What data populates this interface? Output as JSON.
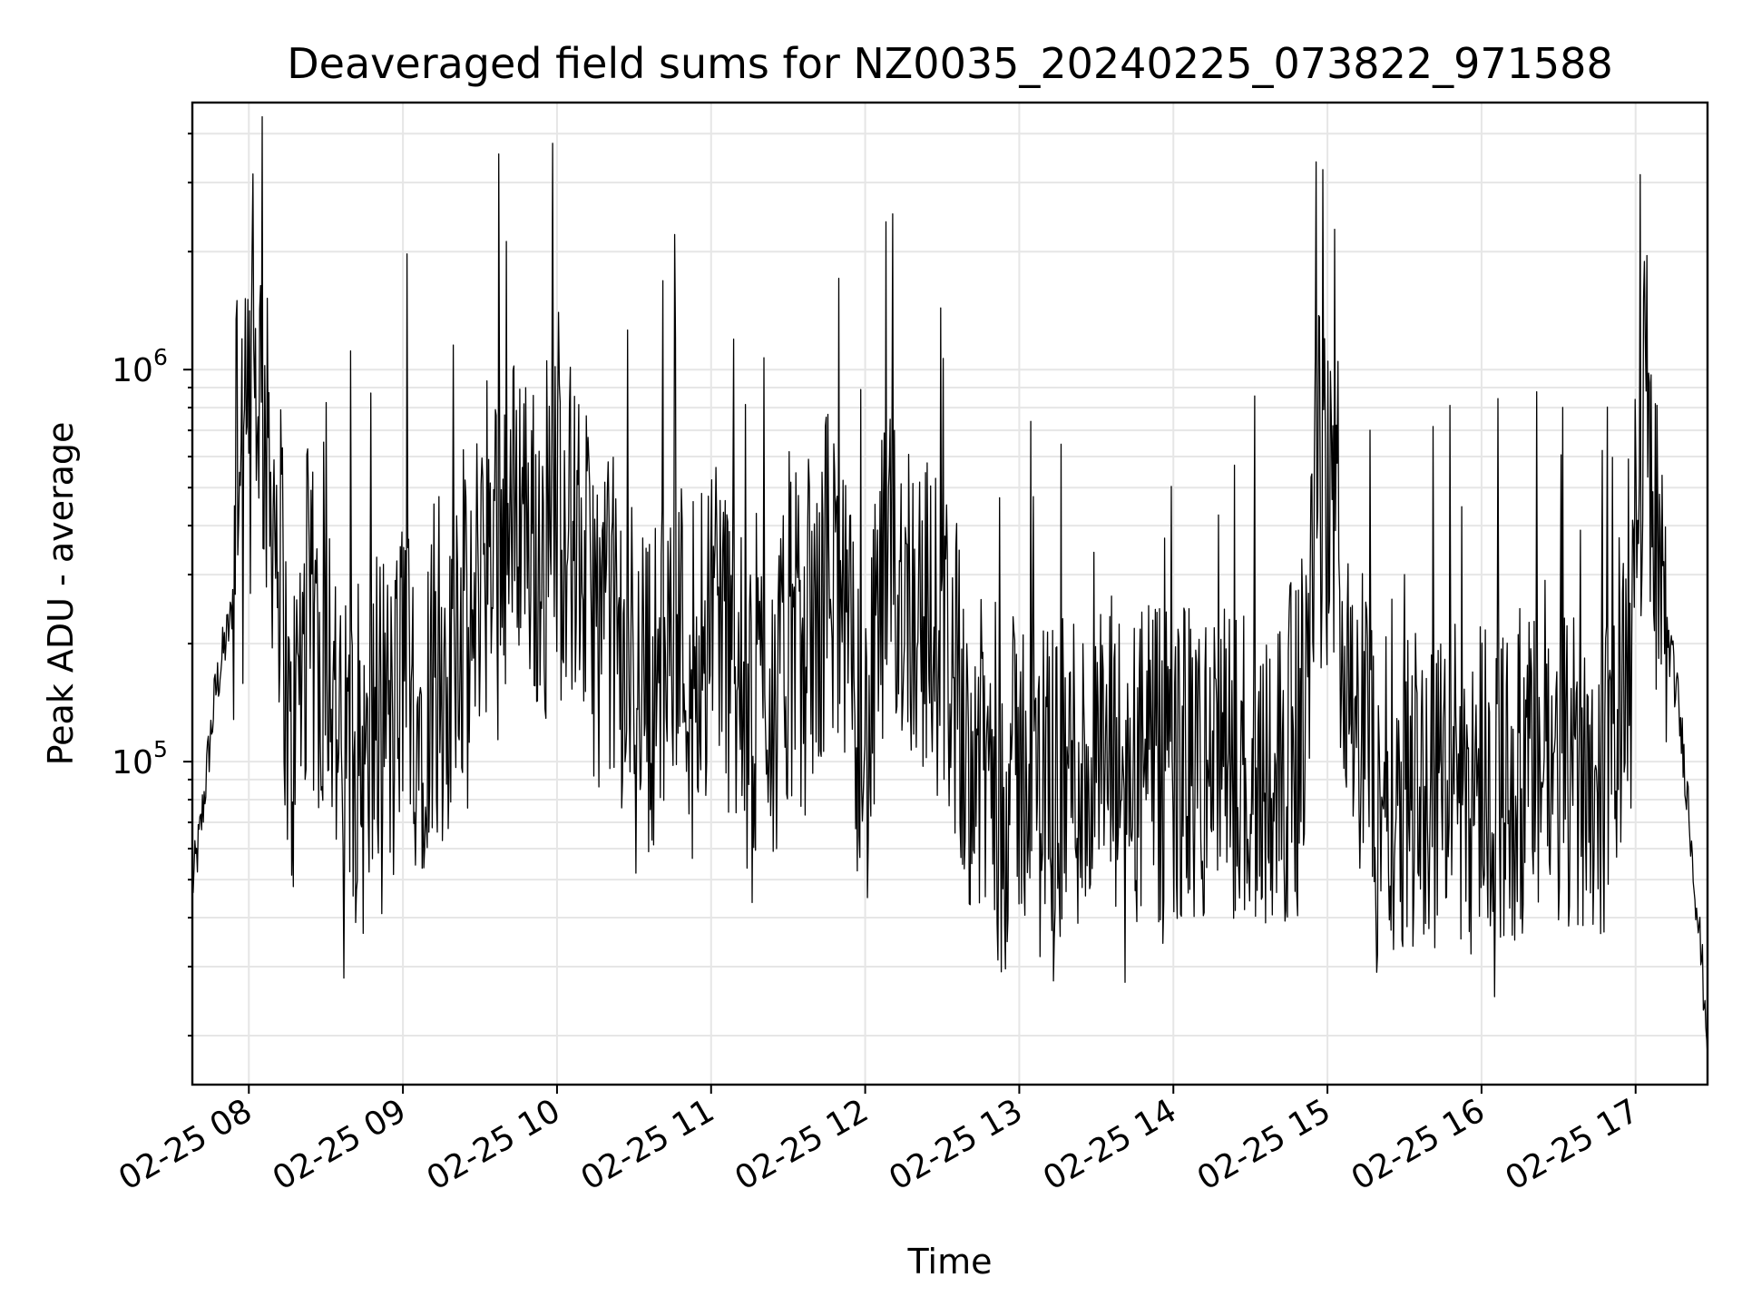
{
  "chart_data": {
    "type": "line",
    "title": "Deaveraged field sums for NZ0035_20240225_073822_971588",
    "xlabel": "Time",
    "ylabel": "Peak ADU - average",
    "x_tick_labels": [
      "02-25 08",
      "02-25 09",
      "02-25 10",
      "02-25 11",
      "02-25 12",
      "02-25 13",
      "02-25 14",
      "02-25 15",
      "02-25 16",
      "02-25 17"
    ],
    "y_tick_labels": [
      {
        "base": "10",
        "exp": "5",
        "value": 100000
      },
      {
        "base": "10",
        "exp": "6",
        "value": 1000000
      }
    ],
    "x_range": [
      "2024-02-25 07:38",
      "2024-02-25 17:28"
    ],
    "y_range": [
      15000,
      4800000
    ],
    "y_scale": "log",
    "grid": true,
    "line_color": "#000000",
    "series": [
      {
        "points": [
          [
            "07:38",
            48000
          ],
          [
            "07:41",
            65000
          ],
          [
            "07:44",
            100000
          ],
          [
            "07:47",
            150000
          ],
          [
            "07:50",
            190000
          ],
          [
            "07:53",
            230000
          ],
          [
            "07:56",
            420000
          ],
          [
            "07:59",
            600000
          ],
          [
            "08:02",
            850000
          ],
          [
            "08:04",
            1000000
          ],
          [
            "08:07",
            600000
          ],
          [
            "08:10",
            450000
          ],
          [
            "08:13",
            300000
          ],
          [
            "08:16",
            90000
          ],
          [
            "08:19",
            150000
          ],
          [
            "08:23",
            250000
          ],
          [
            "08:27",
            170000
          ],
          [
            "08:31",
            220000
          ],
          [
            "08:36",
            90000
          ],
          [
            "08:41",
            130000
          ],
          [
            "08:46",
            80000
          ],
          [
            "08:51",
            170000
          ],
          [
            "08:56",
            110000
          ],
          [
            "09:01",
            220000
          ],
          [
            "09:06",
            120000
          ],
          [
            "09:11",
            170000
          ],
          [
            "09:16",
            90000
          ],
          [
            "09:21",
            260000
          ],
          [
            "09:26",
            170000
          ],
          [
            "09:31",
            400000
          ],
          [
            "09:36",
            450000
          ],
          [
            "09:41",
            380000
          ],
          [
            "09:46",
            500000
          ],
          [
            "09:51",
            350000
          ],
          [
            "09:56",
            420000
          ],
          [
            "10:01",
            480000
          ],
          [
            "10:06",
            380000
          ],
          [
            "10:11",
            300000
          ],
          [
            "10:16",
            220000
          ],
          [
            "10:21",
            250000
          ],
          [
            "10:26",
            160000
          ],
          [
            "10:31",
            200000
          ],
          [
            "10:36",
            150000
          ],
          [
            "10:41",
            180000
          ],
          [
            "10:46",
            250000
          ],
          [
            "10:51",
            180000
          ],
          [
            "10:56",
            220000
          ],
          [
            "11:01",
            330000
          ],
          [
            "11:06",
            200000
          ],
          [
            "11:11",
            150000
          ],
          [
            "11:16",
            110000
          ],
          [
            "11:21",
            180000
          ],
          [
            "11:26",
            130000
          ],
          [
            "11:31",
            220000
          ],
          [
            "11:36",
            190000
          ],
          [
            "11:41",
            200000
          ],
          [
            "11:46",
            350000
          ],
          [
            "11:51",
            220000
          ],
          [
            "11:56",
            150000
          ],
          [
            "12:01",
            100000
          ],
          [
            "12:06",
            260000
          ],
          [
            "12:11",
            300000
          ],
          [
            "12:16",
            280000
          ],
          [
            "12:21",
            250000
          ],
          [
            "12:26",
            220000
          ],
          [
            "12:31",
            200000
          ],
          [
            "12:36",
            160000
          ],
          [
            "12:41",
            110000
          ],
          [
            "12:46",
            95000
          ],
          [
            "12:51",
            100000
          ],
          [
            "12:56",
            85000
          ],
          [
            "13:01",
            100000
          ],
          [
            "13:06",
            90000
          ],
          [
            "13:11",
            95000
          ],
          [
            "13:16",
            85000
          ],
          [
            "13:21",
            100000
          ],
          [
            "13:26",
            90000
          ],
          [
            "13:31",
            95000
          ],
          [
            "13:36",
            100000
          ],
          [
            "13:41",
            90000
          ],
          [
            "13:46",
            95000
          ],
          [
            "13:51",
            100000
          ],
          [
            "13:56",
            90000
          ],
          [
            "14:01",
            95000
          ],
          [
            "14:06",
            100000
          ],
          [
            "14:11",
            90000
          ],
          [
            "14:16",
            105000
          ],
          [
            "14:21",
            95000
          ],
          [
            "14:26",
            100000
          ],
          [
            "14:31",
            90000
          ],
          [
            "14:36",
            100000
          ],
          [
            "14:41",
            95000
          ],
          [
            "14:46",
            110000
          ],
          [
            "14:51",
            130000
          ],
          [
            "14:56",
            600000
          ],
          [
            "15:01",
            400000
          ],
          [
            "15:06",
            250000
          ],
          [
            "15:11",
            150000
          ],
          [
            "15:16",
            110000
          ],
          [
            "15:21",
            90000
          ],
          [
            "15:26",
            100000
          ],
          [
            "15:31",
            85000
          ],
          [
            "15:36",
            95000
          ],
          [
            "15:41",
            80000
          ],
          [
            "15:46",
            100000
          ],
          [
            "15:51",
            90000
          ],
          [
            "15:56",
            85000
          ],
          [
            "16:01",
            100000
          ],
          [
            "16:06",
            90000
          ],
          [
            "16:11",
            85000
          ],
          [
            "16:16",
            95000
          ],
          [
            "16:21",
            90000
          ],
          [
            "16:26",
            100000
          ],
          [
            "16:31",
            85000
          ],
          [
            "16:36",
            95000
          ],
          [
            "16:41",
            100000
          ],
          [
            "16:46",
            90000
          ],
          [
            "16:51",
            100000
          ],
          [
            "16:56",
            200000
          ],
          [
            "16:59",
            300000
          ],
          [
            "17:02",
            600000
          ],
          [
            "17:04",
            1000000
          ],
          [
            "17:06",
            450000
          ],
          [
            "17:08",
            380000
          ],
          [
            "17:10",
            250000
          ],
          [
            "17:13",
            200000
          ],
          [
            "17:16",
            150000
          ],
          [
            "17:19",
            100000
          ],
          [
            "17:22",
            60000
          ],
          [
            "17:25",
            35000
          ],
          [
            "17:28",
            20000
          ]
        ]
      }
    ]
  }
}
